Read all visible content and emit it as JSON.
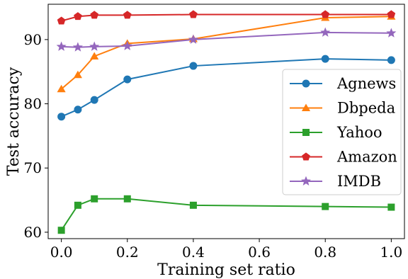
{
  "chart_data": {
    "type": "line",
    "xlabel": "Training set ratio",
    "ylabel": "Test accuracy",
    "xlim": [
      -0.04,
      1.04
    ],
    "ylim": [
      59,
      95.5
    ],
    "xticks": [
      0.0,
      0.2,
      0.4,
      0.6,
      0.8,
      1.0
    ],
    "xtick_labels": [
      "0.0",
      "0.2",
      "0.4",
      "0.6",
      "0.8",
      "1.0"
    ],
    "yticks": [
      60,
      70,
      80,
      90
    ],
    "ytick_labels": [
      "60",
      "70",
      "80",
      "90"
    ],
    "grid": false,
    "legend_position": "center-right",
    "x": [
      0.0,
      0.05,
      0.1,
      0.2,
      0.4,
      0.8,
      1.0
    ],
    "series": [
      {
        "name": "Agnews",
        "color": "#1f77b4",
        "marker": "circle",
        "values": [
          78.0,
          79.1,
          80.6,
          83.8,
          85.9,
          87.0,
          86.8
        ]
      },
      {
        "name": "Dbpeda",
        "color": "#ff7f0e",
        "marker": "triangle",
        "values": [
          82.3,
          84.5,
          87.4,
          89.4,
          90.1,
          93.4,
          93.6
        ]
      },
      {
        "name": "Yahoo",
        "color": "#2ca02c",
        "marker": "square",
        "values": [
          60.3,
          64.2,
          65.2,
          65.2,
          64.2,
          64.0,
          63.9
        ]
      },
      {
        "name": "Amazon",
        "color": "#d62728",
        "marker": "pentagon",
        "values": [
          92.9,
          93.6,
          93.8,
          93.8,
          93.9,
          93.9,
          93.9
        ]
      },
      {
        "name": "IMDB",
        "color": "#9467bd",
        "marker": "star",
        "values": [
          88.9,
          88.8,
          88.9,
          89.0,
          90.0,
          91.1,
          91.0
        ]
      }
    ]
  }
}
